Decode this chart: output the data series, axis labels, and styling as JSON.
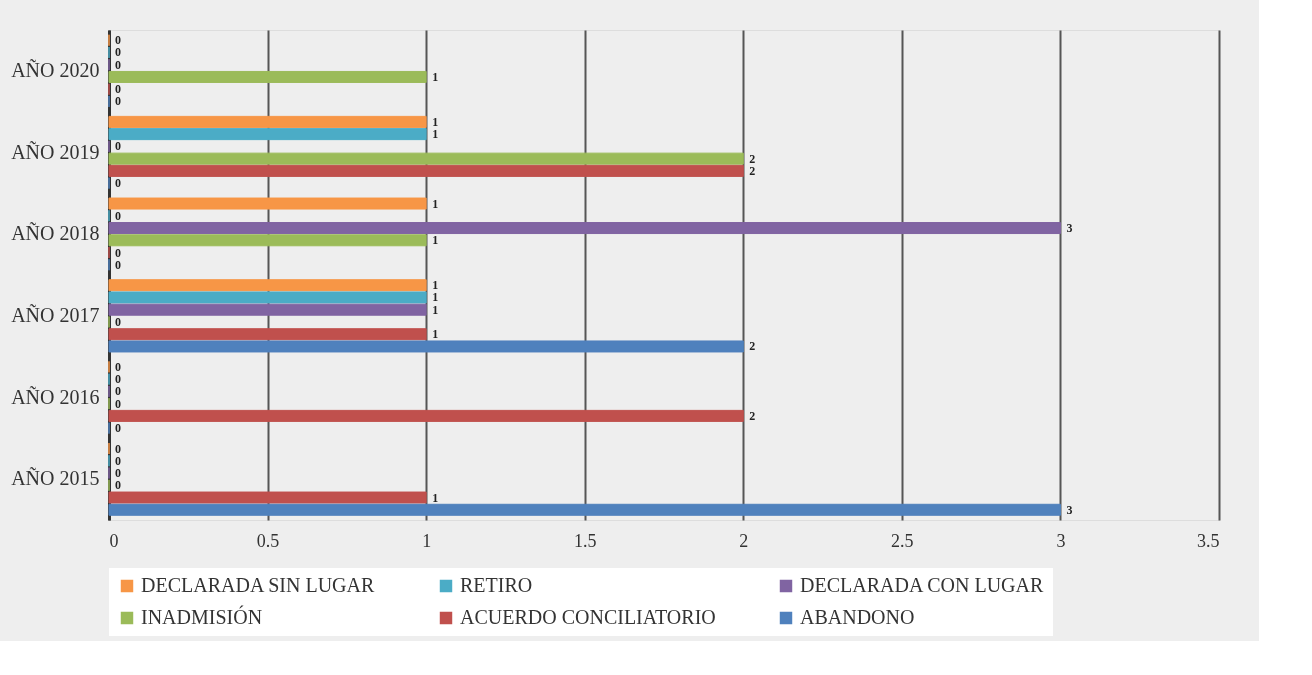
{
  "chart_data": {
    "type": "bar",
    "orientation": "horizontal",
    "categories": [
      "AÑO 2020",
      "AÑO 2019",
      "AÑO 2018",
      "AÑO 2017",
      "AÑO 2016",
      "AÑO 2015"
    ],
    "series": [
      {
        "name": "DECLARADA SIN LUGAR",
        "color": "#f79646",
        "values": [
          0,
          1,
          1,
          1,
          0,
          0
        ]
      },
      {
        "name": "RETIRO",
        "color": "#4bacc6",
        "values": [
          0,
          1,
          0,
          1,
          0,
          0
        ]
      },
      {
        "name": "DECLARADA CON LUGAR",
        "color": "#8064a2",
        "values": [
          0,
          0,
          3,
          1,
          0,
          0
        ]
      },
      {
        "name": "INADMISIÓN",
        "color": "#9bbb59",
        "values": [
          1,
          2,
          1,
          0,
          0,
          0
        ]
      },
      {
        "name": "ACUERDO CONCILIATORIO",
        "color": "#c0504d",
        "values": [
          0,
          2,
          0,
          1,
          2,
          1
        ]
      },
      {
        "name": "ABANDONO",
        "color": "#4f81bd",
        "values": [
          0,
          0,
          0,
          2,
          0,
          3
        ]
      }
    ],
    "xlim": [
      0,
      3.5
    ],
    "xticks": [
      0,
      0.5,
      1,
      1.5,
      2,
      2.5,
      3,
      3.5
    ],
    "grid": "x",
    "legend": "bottom",
    "data_labels": true
  }
}
